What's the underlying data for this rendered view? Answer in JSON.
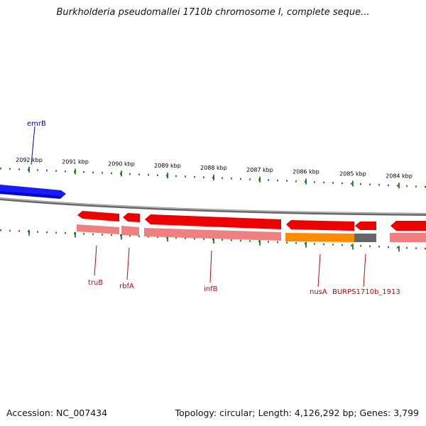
{
  "title": "Burkholderia pseudomallei 1710b chromosome I, complete seque...",
  "footer": {
    "accession": "Accession: NC_007434",
    "summary": "Topology: circular; Length: 4,126,292 bp; Genes: 3,799"
  },
  "colors": {
    "forward_gene": "#1a1aff",
    "reverse_gene": "#ee0000",
    "reverse_gene_light": "#f08080",
    "orange_feature": "#ff8c00",
    "gray_feature": "#666666",
    "backbone": "#888888",
    "tick": "#006600",
    "gene_label_blue": "#0000cc",
    "gene_label_red": "#cc0000"
  },
  "ticks": [
    "2092 kbp",
    "2091 kbp",
    "2090 kbp",
    "2089 kbp",
    "2088 kbp",
    "2087 kbp",
    "2086 kbp",
    "2085 kbp",
    "2084 kbp"
  ],
  "genes": [
    {
      "name": "emrB",
      "strand": "+"
    },
    {
      "name": "truB",
      "strand": "-"
    },
    {
      "name": "rbfA",
      "strand": "-"
    },
    {
      "name": "infB",
      "strand": "-"
    },
    {
      "name": "nusA",
      "strand": "-"
    },
    {
      "name": "BURPS1710b_1913",
      "strand": "-"
    }
  ]
}
